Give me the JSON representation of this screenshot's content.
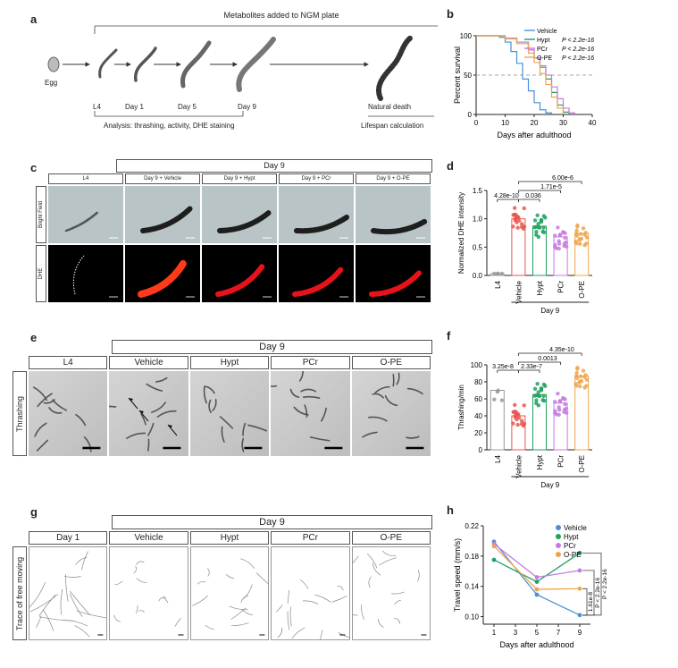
{
  "labels": {
    "a": "a",
    "b": "b",
    "c": "c",
    "d": "d",
    "e": "e",
    "f": "f",
    "g": "g",
    "h": "h"
  },
  "panel_a": {
    "top": "Metabolites added to NGM plate",
    "egg": "Egg",
    "stages": [
      "L4",
      "Day 1",
      "Day 5",
      "Day 9",
      "Natural death"
    ],
    "analysis": "Analysis: thrashing, activity, DHE staining",
    "lifespan": "Lifespan calculation"
  },
  "panel_c": {
    "day9": "Day 9",
    "cols": [
      "L4",
      "Day 9 + Vehicle",
      "Day 9 + Hypt",
      "Day 9 + PCr",
      "Day 9 + O-PE"
    ],
    "rows": [
      "Bright Field",
      "DHE"
    ]
  },
  "panel_e": {
    "day9": "Day 9",
    "cols": [
      "L4",
      "Vehicle",
      "Hypt",
      "PCr",
      "O-PE"
    ],
    "row": "Thrashing"
  },
  "panel_g": {
    "day9": "Day 9",
    "cols": [
      "Day 1",
      "Vehicle",
      "Hypt",
      "PCr",
      "O-PE"
    ],
    "row": "Trace of free moving"
  },
  "colors": {
    "vehicle": "#4a90d9",
    "hypt": "#1fa060",
    "pcr": "#c77be0",
    "ope": "#f0a44a",
    "l4": "#999999",
    "vehicle_bar": "#e8554e"
  },
  "chart_data": [
    {
      "id": "b",
      "type": "line",
      "xlabel": "Days after adulthood",
      "ylabel": "Percent survival",
      "xlim": [
        0,
        40
      ],
      "ylim": [
        0,
        100
      ],
      "xticks": [
        0,
        10,
        20,
        30,
        40
      ],
      "yticks": [
        0,
        50,
        100
      ],
      "legend": [
        {
          "name": "Vehicle",
          "p": ""
        },
        {
          "name": "Hypt",
          "p": "P < 2.2e-16"
        },
        {
          "name": "PCr",
          "p": "P < 2.2e-16"
        },
        {
          "name": "O-PE",
          "p": "P < 2.2e-16"
        }
      ],
      "series": [
        {
          "name": "Vehicle",
          "x": [
            0,
            5,
            8,
            10,
            12,
            14,
            16,
            18,
            20,
            22,
            24,
            26
          ],
          "y": [
            100,
            100,
            98,
            92,
            80,
            65,
            45,
            30,
            15,
            6,
            2,
            0
          ]
        },
        {
          "name": "Hypt",
          "x": [
            0,
            5,
            10,
            14,
            18,
            20,
            22,
            24,
            26,
            28,
            30,
            32
          ],
          "y": [
            100,
            100,
            97,
            92,
            82,
            72,
            60,
            45,
            28,
            12,
            3,
            0
          ]
        },
        {
          "name": "PCr",
          "x": [
            0,
            5,
            10,
            14,
            18,
            20,
            22,
            24,
            26,
            28,
            30,
            32,
            34
          ],
          "y": [
            100,
            100,
            97,
            92,
            82,
            72,
            62,
            50,
            35,
            20,
            8,
            2,
            0
          ]
        },
        {
          "name": "O-PE",
          "x": [
            0,
            5,
            10,
            14,
            18,
            20,
            22,
            24,
            26,
            28,
            30
          ],
          "y": [
            100,
            100,
            96,
            90,
            78,
            66,
            52,
            38,
            22,
            8,
            0
          ]
        }
      ]
    },
    {
      "id": "d",
      "type": "bar",
      "ylabel": "Normalized DHE intensity",
      "xgroup": "Day 9",
      "categories": [
        "L4",
        "Vehicle",
        "Hypt",
        "PCr",
        "O-PE"
      ],
      "values": [
        0.03,
        1.0,
        0.87,
        0.68,
        0.74
      ],
      "ylim": [
        0,
        1.5
      ],
      "yticks": [
        0.0,
        0.5,
        1.0,
        1.5
      ],
      "annotations": [
        "4.28e-10",
        "0.036",
        "1.71e-5",
        "6.00e-6"
      ]
    },
    {
      "id": "f",
      "type": "bar",
      "ylabel": "Thrashing/min",
      "xgroup": "Day 9",
      "categories": [
        "L4",
        "Vehicle",
        "Hypt",
        "PCr",
        "O-PE"
      ],
      "values": [
        70,
        40,
        65,
        55,
        87
      ],
      "ylim": [
        0,
        100
      ],
      "yticks": [
        0,
        20,
        40,
        60,
        80,
        100
      ],
      "annotations": [
        "3.25e-8",
        "2.33e-7",
        "0.0013",
        "4.35e-10"
      ]
    },
    {
      "id": "h",
      "type": "line",
      "xlabel": "Days after adulthood",
      "ylabel": "Travel speed (mm/s)",
      "xlim": [
        0,
        10
      ],
      "ylim": [
        0.09,
        0.22
      ],
      "xticks": [
        1,
        3,
        5,
        7,
        9
      ],
      "yticks": [
        0.1,
        0.14,
        0.18,
        0.22
      ],
      "x": [
        1,
        5,
        9
      ],
      "series": [
        {
          "name": "Vehicle",
          "values": [
            0.199,
            0.129,
            0.102
          ]
        },
        {
          "name": "Hypt",
          "values": [
            0.175,
            0.146,
            0.184
          ]
        },
        {
          "name": "PCr",
          "values": [
            0.196,
            0.152,
            0.161
          ]
        },
        {
          "name": "O-PE",
          "values": [
            0.193,
            0.136,
            0.137
          ]
        }
      ],
      "annotations": [
        "1.61e-8",
        "P < 2.2e-16",
        "P < 2.2e-16"
      ]
    }
  ]
}
